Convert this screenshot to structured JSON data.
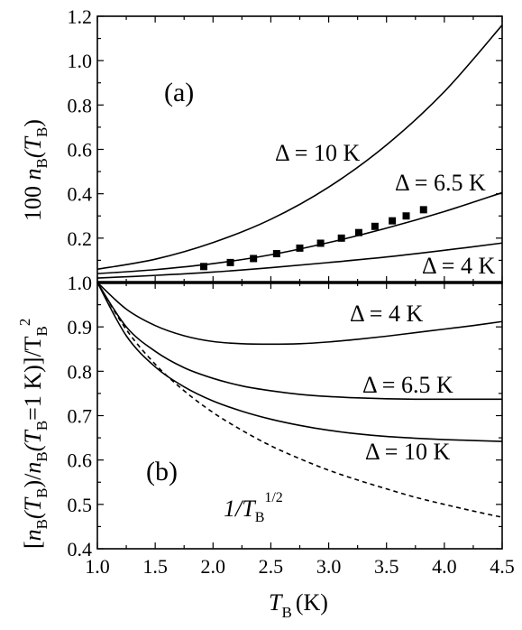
{
  "chart_data": [
    {
      "panel": "(a)",
      "type": "line",
      "ylabel": "100 n̄B(TB)",
      "xlim": [
        1.0,
        4.5
      ],
      "ylim": [
        0.0,
        1.2
      ],
      "yticks": [
        "1.0",
        "0.8",
        "0.6",
        "0.4",
        "0.2"
      ],
      "grid": false,
      "series": [
        {
          "name": "Δ = 10 K",
          "x": [
            1.0,
            1.5,
            2.0,
            2.5,
            3.0,
            3.5,
            4.0,
            4.5
          ],
          "y": [
            0.06,
            0.105,
            0.18,
            0.285,
            0.43,
            0.62,
            0.86,
            1.16
          ]
        },
        {
          "name": "Δ = 6.5 K",
          "x": [
            1.0,
            1.5,
            2.0,
            2.5,
            3.0,
            3.5,
            4.0,
            4.5
          ],
          "y": [
            0.04,
            0.058,
            0.085,
            0.125,
            0.18,
            0.245,
            0.32,
            0.405
          ]
        },
        {
          "name": "Δ = 4 K",
          "x": [
            1.0,
            1.5,
            2.0,
            2.5,
            3.0,
            3.5,
            4.0,
            4.5
          ],
          "y": [
            0.02,
            0.032,
            0.047,
            0.067,
            0.09,
            0.115,
            0.145,
            0.178
          ]
        },
        {
          "name": "data",
          "style": "markers",
          "x": [
            1.92,
            2.15,
            2.35,
            2.55,
            2.75,
            2.93,
            3.11,
            3.26,
            3.4,
            3.55,
            3.67,
            3.82
          ],
          "y": [
            0.072,
            0.09,
            0.108,
            0.13,
            0.155,
            0.177,
            0.2,
            0.225,
            0.253,
            0.278,
            0.3,
            0.328
          ]
        }
      ]
    },
    {
      "panel": "(b)",
      "type": "line",
      "xlabel_main": "T",
      "xlabel_sub": "B",
      "xlabel_unit": "(K)",
      "ylabel": "[n̄B(TB)/n̄B(TB=1 K)]/TB²",
      "xlim": [
        1.0,
        4.5
      ],
      "ylim": [
        0.4,
        1.0
      ],
      "xticks": [
        "1.0",
        "1.5",
        "2.0",
        "2.5",
        "3.0",
        "3.5",
        "4.0",
        "4.5"
      ],
      "yticks": [
        "1.0",
        "0.9",
        "0.8",
        "0.7",
        "0.6",
        "0.5",
        "0.4"
      ],
      "grid": false,
      "series": [
        {
          "name": "Δ = 4 K",
          "x": [
            1.0,
            1.25,
            1.5,
            1.75,
            2.0,
            2.25,
            2.5,
            2.75,
            3.0,
            3.25,
            3.5,
            3.75,
            4.0,
            4.25,
            4.5
          ],
          "y": [
            1.0,
            0.94,
            0.903,
            0.88,
            0.867,
            0.862,
            0.861,
            0.862,
            0.866,
            0.872,
            0.879,
            0.887,
            0.895,
            0.903,
            0.912
          ]
        },
        {
          "name": "Δ = 6.5 K",
          "x": [
            1.0,
            1.25,
            1.5,
            1.75,
            2.0,
            2.25,
            2.5,
            2.75,
            3.0,
            3.25,
            3.5,
            3.75,
            4.0,
            4.25,
            4.5
          ],
          "y": [
            1.0,
            0.9,
            0.845,
            0.808,
            0.784,
            0.767,
            0.756,
            0.748,
            0.743,
            0.74,
            0.738,
            0.737,
            0.737,
            0.737,
            0.737
          ]
        },
        {
          "name": "Δ = 10 K",
          "x": [
            1.0,
            1.25,
            1.5,
            1.75,
            2.0,
            2.25,
            2.5,
            2.75,
            3.0,
            3.25,
            3.5,
            3.75,
            4.0,
            4.25,
            4.5
          ],
          "y": [
            1.0,
            0.88,
            0.81,
            0.765,
            0.733,
            0.71,
            0.692,
            0.678,
            0.667,
            0.659,
            0.653,
            0.649,
            0.646,
            0.644,
            0.642
          ]
        },
        {
          "name": "1/TB^(1/2)",
          "style": "dashed",
          "x": [
            1.0,
            1.25,
            1.5,
            1.75,
            2.0,
            2.25,
            2.5,
            2.75,
            3.0,
            3.25,
            3.5,
            3.75,
            4.0,
            4.25,
            4.5
          ],
          "y": [
            1.0,
            0.894,
            0.816,
            0.756,
            0.707,
            0.667,
            0.632,
            0.603,
            0.577,
            0.555,
            0.535,
            0.516,
            0.5,
            0.485,
            0.471
          ]
        }
      ]
    }
  ],
  "annotations": {
    "a_d10_pre": "Δ = 10 K",
    "a_d65_pre": "Δ = 6.5 K",
    "a_d4_pre": "Δ = 4 K",
    "b_d4_pre": "Δ = 4 K",
    "b_d65_pre": "Δ = 6.5 K",
    "b_d10_pre": "Δ = 10 K",
    "b_sqrt": "1/T",
    "b_sqrt_sub": "B",
    "b_sqrt_sup": "1/2",
    "panel_a": "(a)",
    "panel_b": "(b)",
    "ylabel_a_pre": "100 ",
    "ylabel_a_n": "n",
    "ylabel_a_sub": "B",
    "ylabel_a_arg": "(T",
    "ylabel_a_argsub": "B",
    "ylabel_a_close": ")",
    "ylabel_b_1": "[",
    "ylabel_b_2": "n",
    "ylabel_b_3": "B",
    "ylabel_b_4": "(T",
    "ylabel_b_5": "B",
    "ylabel_b_6": ")/",
    "ylabel_b_7": "n",
    "ylabel_b_8": "B",
    "ylabel_b_9": "(T",
    "ylabel_b_10": "B",
    "ylabel_b_11": "=1 K)]/T",
    "ylabel_b_12": "B",
    "ylabel_b_13": "2"
  }
}
